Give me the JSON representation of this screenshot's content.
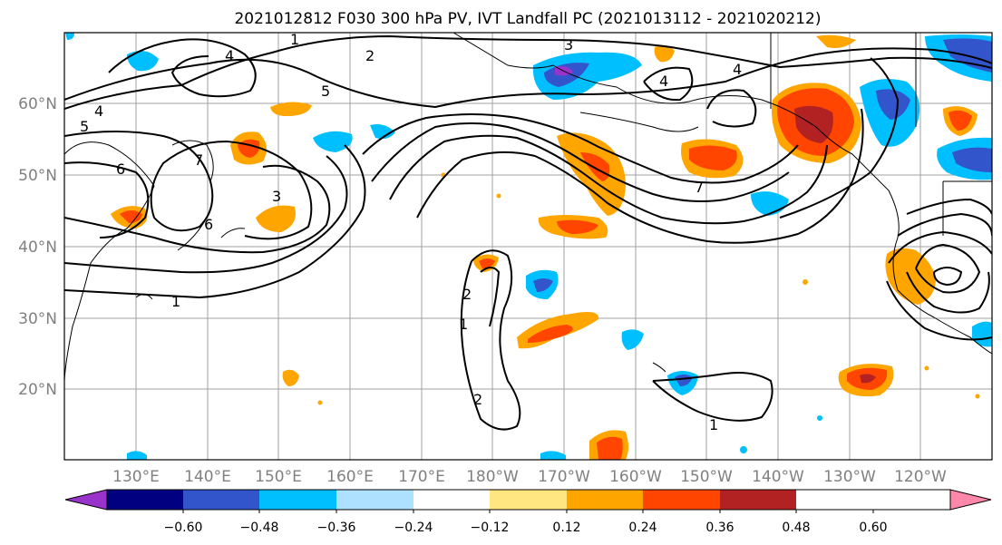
{
  "title": "2021012812 F030 300 hPa PV, IVT Landfall PC (2021013112 - 2021020212)",
  "map": {
    "lat_labels": [
      "60°N",
      "50°N",
      "40°N",
      "30°N",
      "20°N"
    ],
    "lon_labels": [
      "130°E",
      "140°E",
      "150°E",
      "160°E",
      "170°E",
      "180°W",
      "170°W",
      "160°W",
      "150°W",
      "140°W",
      "130°W",
      "120°W"
    ],
    "contour_labels": [
      "1",
      "2",
      "3",
      "4",
      "4",
      "4",
      "5",
      "6",
      "6",
      "7",
      "2",
      "1",
      "2",
      "1",
      "3",
      "4",
      "5",
      "7",
      "1"
    ]
  },
  "colorbar": {
    "tick_labels": [
      "−0.60",
      "−0.48",
      "−0.36",
      "−0.24",
      "−0.12",
      "0.12",
      "0.24",
      "0.36",
      "0.48",
      "0.60"
    ],
    "colors": [
      "#9933cc",
      "#000080",
      "#3355cc",
      "#00bfff",
      "#aee0ff",
      "#ffffff",
      "#ffe680",
      "#ffa500",
      "#ff4500",
      "#b22222",
      "#ff88aa"
    ]
  }
}
